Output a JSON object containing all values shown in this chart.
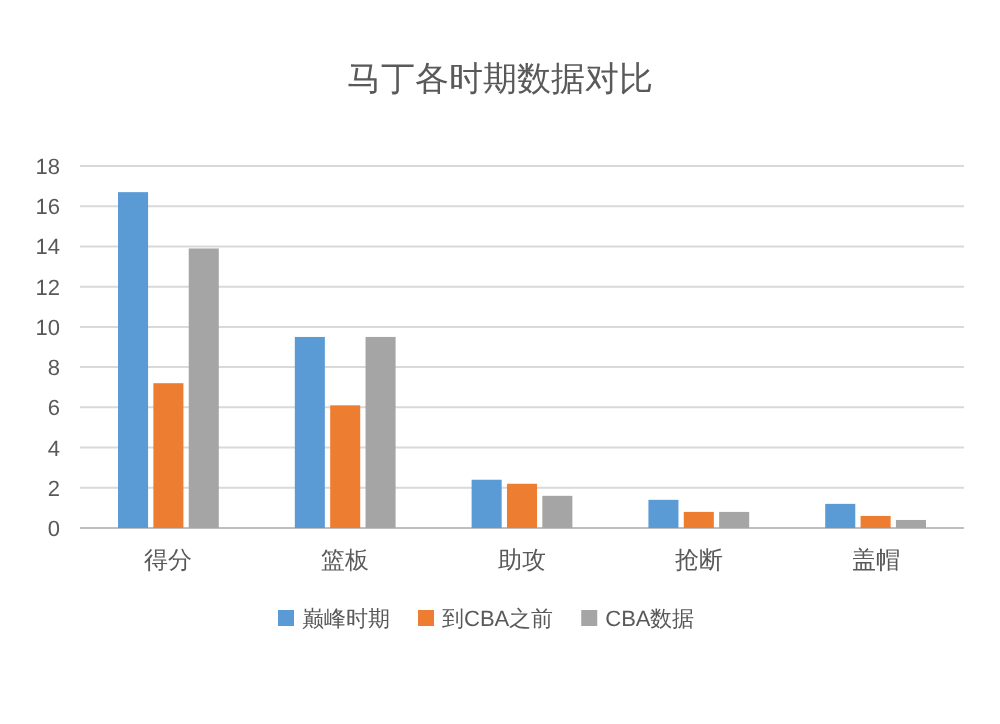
{
  "chart_data": {
    "type": "bar",
    "title": "马丁各时期数据对比",
    "categories": [
      "得分",
      "篮板",
      "助攻",
      "抢断",
      "盖帽"
    ],
    "series": [
      {
        "name": "巅峰时期",
        "color": "#5b9bd5",
        "values": [
          16.7,
          9.5,
          2.4,
          1.4,
          1.2
        ]
      },
      {
        "name": "到CBA之前",
        "color": "#ed7d31",
        "values": [
          7.2,
          6.1,
          2.2,
          0.8,
          0.6
        ]
      },
      {
        "name": "CBA数据",
        "color": "#a5a5a5",
        "values": [
          13.9,
          9.5,
          1.6,
          0.8,
          0.4
        ]
      }
    ],
    "ylim": [
      0,
      18
    ],
    "yticks": [
      0,
      2,
      4,
      6,
      8,
      10,
      12,
      14,
      16,
      18
    ],
    "grid": "y",
    "legend": "bottom"
  }
}
